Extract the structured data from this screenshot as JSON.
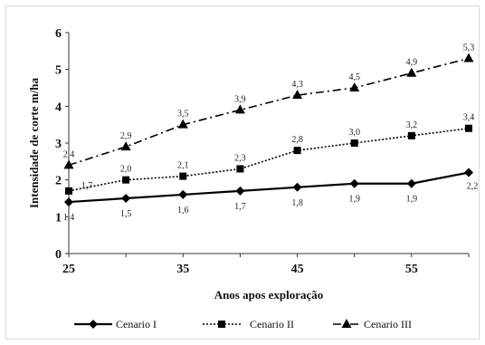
{
  "chart_data": {
    "type": "line",
    "title": "",
    "xlabel": "Anos apos exploração",
    "ylabel": "Intensidade de corte m/ha",
    "xlim": [
      25,
      60
    ],
    "ylim": [
      0,
      6
    ],
    "x_ticks": [
      25,
      35,
      45,
      55
    ],
    "y_ticks": [
      0,
      1,
      2,
      3,
      4,
      5,
      6
    ],
    "grid": false,
    "legend_position": "bottom",
    "x": [
      25,
      30,
      35,
      40,
      45,
      50,
      55,
      60
    ],
    "series": [
      {
        "name": "Cenario I",
        "values": [
          1.4,
          1.5,
          1.6,
          1.7,
          1.8,
          1.9,
          1.9,
          2.2
        ],
        "labels": [
          "1,4",
          "1,5",
          "1,6",
          "1,7",
          "1,8",
          "1,9",
          "1,9",
          "2,2"
        ],
        "line_style": "solid",
        "marker": "diamond",
        "color": "#000000"
      },
      {
        "name": "Cenario II",
        "values": [
          1.7,
          2.0,
          2.1,
          2.3,
          2.8,
          3.0,
          3.2,
          3.4
        ],
        "labels": [
          "1,7",
          "2,0",
          "2,1",
          "2,3",
          "2,8",
          "3,0",
          "3,2",
          "3,4"
        ],
        "line_style": "dotted",
        "marker": "square",
        "color": "#000000"
      },
      {
        "name": "Cenario III",
        "values": [
          2.4,
          2.9,
          3.5,
          3.9,
          4.3,
          4.5,
          4.9,
          5.3
        ],
        "labels": [
          "2,4",
          "2,9",
          "3,5",
          "3,9",
          "4,3",
          "4,5",
          "4,9",
          "5,3"
        ],
        "line_style": "dash-dot",
        "marker": "triangle",
        "color": "#000000"
      }
    ]
  }
}
